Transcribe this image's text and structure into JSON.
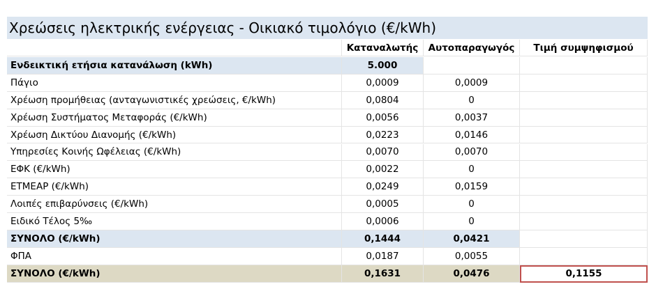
{
  "title": "Χρεώσεις ηλεκτρικής ενέργειας - Οικιακό τιμολόγιο (€/kWh)",
  "columns": [
    "Καταναλωτής",
    "Αυτοπαραγωγός",
    "Τιμή συμψηφισμού"
  ],
  "rows": [
    {
      "label": "Ενδεικτική ετήσια κατανάλωση (kWh)",
      "values": [
        "5.000"
      ]
    },
    {
      "label": "Πάγιο",
      "values": [
        "0,0009",
        "0,0009"
      ]
    },
    {
      "label": "Χρέωση προμήθειας (ανταγωνιστικές χρεώσεις, €/kWh)",
      "values": [
        "0,0804",
        "0"
      ]
    },
    {
      "label": "Χρέωση Συστήματος Μεταφοράς (€/kWh)",
      "values": [
        "0,0056",
        "0,0037"
      ]
    },
    {
      "label": "Χρέωση Δικτύου Διανομής (€/kWh)",
      "values": [
        "0,0223",
        "0,0146"
      ]
    },
    {
      "label": "Υπηρεσίες Κοινής Ωφέλειας (€/kWh)",
      "values": [
        "0,0070",
        "0,0070"
      ]
    },
    {
      "label": "ΕΦΚ (€/kWh)",
      "values": [
        "0,0022",
        "0"
      ]
    },
    {
      "label": "ΕΤΜΕΑΡ (€/kWh)",
      "values": [
        "0,0249",
        "0,0159"
      ]
    },
    {
      "label": "Λοιπές επιβαρύνσεις (€/kWh)",
      "values": [
        "0,0005",
        "0"
      ]
    },
    {
      "label": "Ειδικό Τέλος 5‰",
      "values": [
        "0,0006",
        "0"
      ]
    },
    {
      "label": "ΣΥΝΟΛΟ (€/kWh)",
      "values": [
        "0,1444",
        "0,0421"
      ]
    },
    {
      "label": "ΦΠΑ",
      "values": [
        "0,0187",
        "0,0055"
      ]
    },
    {
      "label": "ΣΥΝΟΛΟ (€/kWh)",
      "values": [
        "0,1631",
        "0,0476",
        "0,1155"
      ]
    }
  ]
}
